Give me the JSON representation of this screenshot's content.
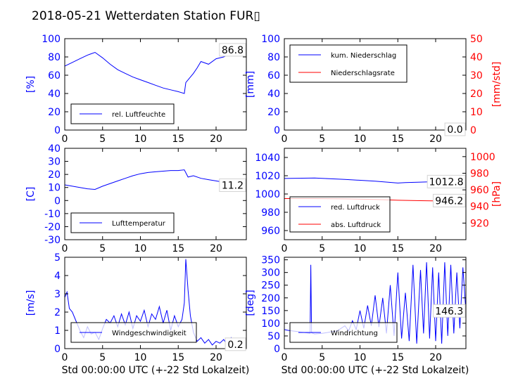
{
  "title": "2018-05-21 Wetterdaten Station FUR▯",
  "colors": {
    "blue": "#0000ff",
    "red": "#ff0000",
    "axis": "#000000",
    "label_box": "#d3d3d3"
  },
  "chart_data": [
    {
      "type": "line",
      "xlim": [
        0,
        24
      ],
      "ylim": [
        0,
        100
      ],
      "xticks": [
        0,
        5,
        10,
        15,
        20
      ],
      "yticks": [
        0,
        20,
        40,
        60,
        80,
        100
      ],
      "ylabel": "[%]",
      "ylabel_color": "#0000ff",
      "last_value_label": "86.8",
      "legend": "upper-left-inside-bottom",
      "series": [
        {
          "name": "rel. Luftfeuchte",
          "color": "#0000ff",
          "x": [
            0,
            1,
            2,
            3,
            4,
            5,
            6,
            7,
            8,
            9,
            10,
            11,
            12,
            13,
            14,
            15,
            15.8,
            16,
            17,
            17.5,
            18,
            19,
            20,
            21,
            22,
            23,
            23.8
          ],
          "y": [
            70,
            74,
            78,
            82,
            85,
            79,
            72,
            66,
            62,
            58,
            55,
            52,
            49,
            46,
            44,
            42,
            40,
            52,
            62,
            68,
            75,
            72,
            78,
            80,
            84,
            86,
            87
          ]
        }
      ]
    },
    {
      "type": "line",
      "xlim": [
        0,
        24
      ],
      "ylim": [
        0,
        100
      ],
      "ylim_right": [
        0,
        50
      ],
      "xticks": [
        0,
        5,
        10,
        15,
        20
      ],
      "yticks": [
        0,
        20,
        40,
        60,
        80,
        100
      ],
      "yticks_right": [
        0,
        10,
        20,
        30,
        40,
        50
      ],
      "ylabel": "[mm]",
      "ylabel_color": "#0000ff",
      "ylabel_right": "[mm/std]",
      "ylabel_right_color": "#ff0000",
      "last_value_label": "0.0",
      "legend": "upper-left",
      "series": [
        {
          "name": "kum. Niederschlag",
          "color": "#0000ff",
          "axis": "left",
          "x": [
            0,
            24
          ],
          "y": [
            0,
            0
          ]
        },
        {
          "name": "Niederschlagsrate",
          "color": "#ff0000",
          "axis": "right",
          "x": [
            0,
            24
          ],
          "y": [
            0,
            0
          ]
        }
      ]
    },
    {
      "type": "line",
      "xlim": [
        0,
        24
      ],
      "ylim": [
        -30,
        40
      ],
      "xticks": [
        0,
        5,
        10,
        15,
        20
      ],
      "yticks": [
        -30,
        -20,
        -10,
        0,
        10,
        20,
        30,
        40
      ],
      "ylabel": "[C]",
      "ylabel_color": "#0000ff",
      "last_value_label": "11.2",
      "legend": "lower-left",
      "series": [
        {
          "name": "Lufttemperatur",
          "color": "#0000ff",
          "x": [
            0,
            1,
            2,
            3,
            4,
            5,
            6,
            7,
            8,
            9,
            10,
            11,
            12,
            13,
            14,
            15,
            15.8,
            16.3,
            17,
            18,
            19,
            20,
            21,
            22,
            23,
            23.8
          ],
          "y": [
            12,
            11,
            10,
            9,
            8.5,
            11,
            13,
            15,
            17,
            19,
            20.5,
            21.5,
            22,
            22.5,
            23,
            23,
            23.5,
            18,
            19,
            17,
            16,
            15,
            14,
            12.5,
            11.5,
            11.2
          ]
        }
      ]
    },
    {
      "type": "line",
      "xlim": [
        0,
        24
      ],
      "ylim": [
        950,
        1050
      ],
      "ylim_right": [
        900,
        1010
      ],
      "xticks": [
        0,
        5,
        10,
        15,
        20
      ],
      "yticks": [
        960,
        980,
        1000,
        1020,
        1040
      ],
      "yticks_right": [
        920,
        940,
        960,
        980,
        1000
      ],
      "ylabel": "",
      "ylabel_right": "[hPa]",
      "ylabel_right_color": "#ff0000",
      "last_value_label": "1012.8",
      "last_value_label_2": "946.2",
      "legend": "lower-left",
      "series": [
        {
          "name": "red. Luftdruck",
          "color": "#0000ff",
          "axis": "left",
          "x": [
            0,
            4,
            8,
            12,
            15,
            16,
            18,
            20,
            22,
            24
          ],
          "y": [
            1017,
            1017.5,
            1016,
            1014,
            1012,
            1012.5,
            1013,
            1013.5,
            1013,
            1012.8
          ]
        },
        {
          "name": "abs. Luftdruck",
          "color": "#ff0000",
          "axis": "right",
          "x": [
            0,
            4,
            8,
            12,
            15,
            18,
            21,
            24
          ],
          "y": [
            949.5,
            949.5,
            949.2,
            948.5,
            947.5,
            947,
            946.5,
            946.2
          ]
        }
      ]
    },
    {
      "type": "line",
      "xlim": [
        0,
        24
      ],
      "ylim": [
        0,
        5
      ],
      "xticks": [
        0,
        5,
        10,
        15,
        20
      ],
      "yticks": [
        0,
        1,
        2,
        3,
        4,
        5
      ],
      "ylabel": "[m/s]",
      "ylabel_color": "#0000ff",
      "xlabel": "Std 00:00:00 UTC (+-22 Std Lokalzeit)",
      "last_value_label": "0.2",
      "legend": "lower-center",
      "series": [
        {
          "name": "Windgeschwindigkeit",
          "color": "#0000ff",
          "x": [
            0,
            0.3,
            0.6,
            1,
            1.5,
            2,
            2.5,
            3,
            3.5,
            4,
            4.5,
            5,
            5.5,
            6,
            6.5,
            7,
            7.5,
            8,
            8.5,
            9,
            9.5,
            10,
            10.5,
            11,
            11.5,
            12,
            12.5,
            13,
            13.5,
            14,
            14.5,
            15,
            15.5,
            15.8,
            16,
            16.3,
            16.6,
            17,
            17.5,
            18,
            18.5,
            19,
            19.5,
            20,
            20.5,
            21,
            21.5,
            22,
            22.5,
            23,
            23.5,
            24
          ],
          "y": [
            2.8,
            3.1,
            2.2,
            2.0,
            1.5,
            1.0,
            0.6,
            1.2,
            0.8,
            0.9,
            0.5,
            1.1,
            1.6,
            1.4,
            1.8,
            1.2,
            1.9,
            1.3,
            2.0,
            1.1,
            1.8,
            1.5,
            2.1,
            1.2,
            1.9,
            1.6,
            2.3,
            1.4,
            2.1,
            1.0,
            1.8,
            1.2,
            1.6,
            2.5,
            4.9,
            3.2,
            1.8,
            0.9,
            0.4,
            0.6,
            0.3,
            0.5,
            0.2,
            0.4,
            0.3,
            0.5,
            0.2,
            0.6,
            0.3,
            0.2,
            0.4,
            0.2
          ]
        }
      ]
    },
    {
      "type": "line",
      "xlim": [
        0,
        24
      ],
      "ylim": [
        0,
        360
      ],
      "xticks": [
        0,
        5,
        10,
        15,
        20
      ],
      "yticks": [
        0,
        50,
        100,
        150,
        200,
        250,
        300,
        350
      ],
      "ylabel": "[deg]",
      "ylabel_color": "#0000ff",
      "xlabel": "Std 00:00:00 UTC (+-22 Std Lokalzeit)",
      "last_value_label": "146.3",
      "legend": "lower-center",
      "series": [
        {
          "name": "Windrichtung",
          "color": "#0000ff",
          "x": [
            0,
            0.5,
            1,
            1.5,
            2,
            2.5,
            3,
            3.4,
            3.5,
            3.6,
            4,
            5,
            6,
            7,
            8,
            8.5,
            9,
            9.5,
            10,
            10.5,
            11,
            11.5,
            12,
            12.5,
            13,
            13.5,
            14,
            14.5,
            15,
            15.5,
            16,
            16.5,
            17,
            17.5,
            18,
            18.4,
            18.8,
            19.2,
            19.6,
            20,
            20.4,
            20.8,
            21.2,
            21.6,
            22,
            22.4,
            22.8,
            23.2,
            23.6,
            24
          ],
          "y": [
            75,
            72,
            70,
            68,
            66,
            64,
            62,
            60,
            330,
            62,
            58,
            60,
            65,
            70,
            90,
            70,
            110,
            75,
            150,
            80,
            170,
            90,
            210,
            85,
            200,
            60,
            250,
            50,
            300,
            40,
            220,
            30,
            330,
            20,
            310,
            60,
            340,
            40,
            320,
            30,
            300,
            20,
            340,
            50,
            330,
            60,
            300,
            80,
            320,
            146
          ]
        }
      ]
    }
  ]
}
